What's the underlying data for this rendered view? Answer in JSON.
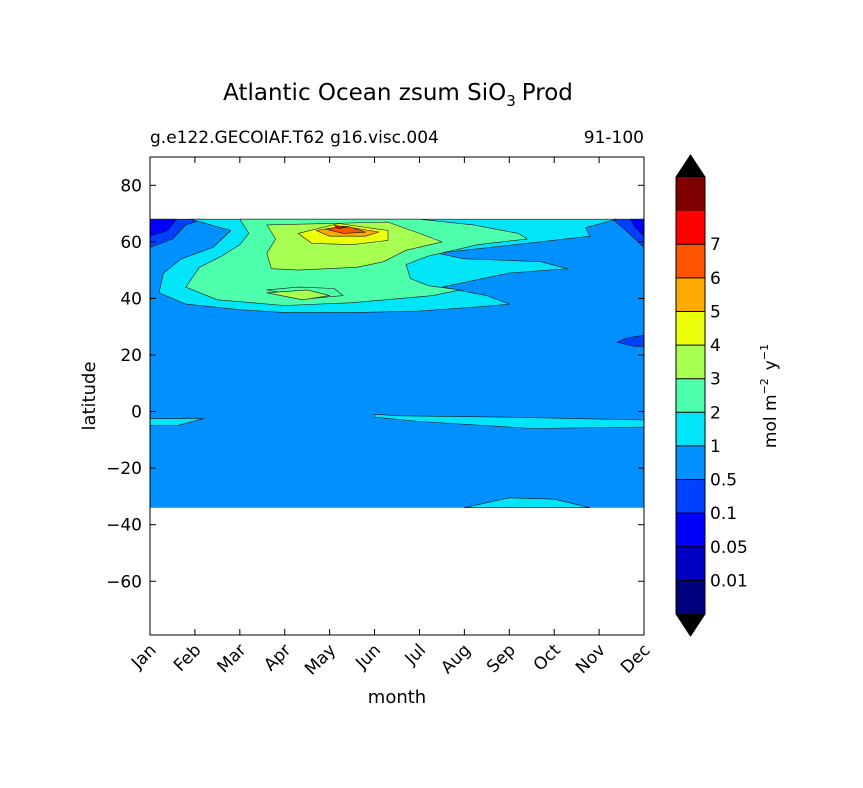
{
  "chart_data": {
    "type": "heatmap",
    "title": "Atlantic Ocean zsum SiO",
    "title_subscript": "3",
    "title_suffix": "Prod",
    "subtitle_left": "g.e122.GECOIAF.T62 g16.visc.004",
    "subtitle_right": "91-100",
    "xlabel": "month",
    "ylabel": "latitude",
    "x_tick_labels": [
      "Jan",
      "Feb",
      "Mar",
      "Apr",
      "May",
      "Jun",
      "Jul",
      "Aug",
      "Sep",
      "Oct",
      "Nov",
      "Dec"
    ],
    "y_ticks": [
      80,
      60,
      40,
      20,
      0,
      -20,
      -40,
      -60
    ],
    "y_tick_labels": [
      "80",
      "60",
      "40",
      "20",
      "0",
      "−20",
      "−40",
      "−60"
    ],
    "ylim": [
      -79,
      90
    ],
    "xlim": [
      0,
      11
    ],
    "data_extent_lat": [
      -34,
      68
    ],
    "colorbar": {
      "label": "mol m",
      "label_sup1": "−2",
      "label_mid": "y",
      "label_sup2": "−1",
      "extend": "both",
      "levels": [
        "0.01",
        "0.05",
        "0.1",
        "0.5",
        "1",
        "2",
        "3",
        "4",
        "5",
        "6",
        "7"
      ],
      "colors": [
        "#00007f",
        "#0000c4",
        "#0000ff",
        "#0040ff",
        "#0090ff",
        "#00e5f7",
        "#4dffaa",
        "#a6ff51",
        "#ecff0a",
        "#ffaa00",
        "#ff5500",
        "#ff0000",
        "#7f0000"
      ],
      "under_color": "#000000",
      "over_color": "#000000"
    },
    "regions": [
      {
        "level": 4,
        "note": "background 0.1-0.5",
        "poly": [
          [
            0,
            -34
          ],
          [
            0,
            68
          ],
          [
            11,
            68
          ],
          [
            11,
            -34
          ]
        ]
      },
      {
        "level": 3,
        "note": "Jan high-lat",
        "poly": [
          [
            0,
            68
          ],
          [
            0,
            58
          ],
          [
            0.5,
            61
          ],
          [
            0.8,
            66
          ],
          [
            1.2,
            68
          ]
        ]
      },
      {
        "level": 2,
        "note": "Jan high-lat core",
        "poly": [
          [
            0,
            68
          ],
          [
            0,
            62
          ],
          [
            0.4,
            64
          ],
          [
            0.6,
            68
          ]
        ]
      },
      {
        "level": 3,
        "note": "Dec high-lat",
        "poly": [
          [
            11,
            68
          ],
          [
            10.3,
            68
          ],
          [
            10.6,
            64
          ],
          [
            11,
            58
          ]
        ]
      },
      {
        "level": 2,
        "note": "Dec high-lat core",
        "poly": [
          [
            11,
            68
          ],
          [
            10.7,
            68
          ],
          [
            10.8,
            65
          ],
          [
            11,
            62
          ]
        ]
      },
      {
        "level": 3,
        "note": "Dec patch ~25N",
        "poly": [
          [
            11,
            27
          ],
          [
            10.6,
            26
          ],
          [
            10.4,
            24.5
          ],
          [
            10.8,
            23
          ],
          [
            11,
            23
          ]
        ]
      },
      {
        "level": 5,
        "note": "mid-lat band",
        "poly": [
          [
            0.9,
            68
          ],
          [
            1.8,
            64
          ],
          [
            1.4,
            58
          ],
          [
            0.7,
            54
          ],
          [
            0.3,
            49
          ],
          [
            0.2,
            42
          ],
          [
            0.8,
            38
          ],
          [
            2.0,
            36
          ],
          [
            3.0,
            35
          ],
          [
            4.5,
            35
          ],
          [
            6.0,
            35.5
          ],
          [
            7.3,
            37
          ],
          [
            8.0,
            38
          ],
          [
            7.5,
            41
          ],
          [
            6.5,
            44
          ],
          [
            8.0,
            49
          ],
          [
            9.3,
            50.5
          ],
          [
            8.7,
            53
          ],
          [
            7.0,
            54
          ],
          [
            6.4,
            56
          ],
          [
            8.4,
            59.5
          ],
          [
            9.8,
            62
          ],
          [
            9.7,
            65
          ],
          [
            10.4,
            68
          ]
        ]
      },
      {
        "level": 6,
        "note": "1-2 band",
        "poly": [
          [
            2.0,
            68
          ],
          [
            2.2,
            63
          ],
          [
            2.0,
            59
          ],
          [
            1.6,
            55
          ],
          [
            1.1,
            51
          ],
          [
            0.8,
            44
          ],
          [
            1.5,
            39.5
          ],
          [
            3.0,
            37.5
          ],
          [
            4.5,
            38.5
          ],
          [
            6.3,
            41
          ],
          [
            6.9,
            43
          ],
          [
            6.2,
            44.5
          ],
          [
            5.8,
            47
          ],
          [
            5.7,
            52
          ],
          [
            6.2,
            55
          ],
          [
            7.3,
            59
          ],
          [
            8.4,
            61
          ],
          [
            8.2,
            63
          ],
          [
            7.2,
            66
          ],
          [
            6.0,
            68
          ]
        ]
      },
      {
        "level": 6,
        "note": "1-2 band inner hole",
        "poly": [
          [
            2.6,
            43
          ],
          [
            3.6,
            40
          ],
          [
            4.3,
            41
          ],
          [
            4.1,
            43.5
          ],
          [
            3.3,
            44
          ]
        ]
      },
      {
        "level": 7,
        "note": "2-3 region",
        "poly": [
          [
            2.6,
            66
          ],
          [
            2.8,
            61
          ],
          [
            2.6,
            56
          ],
          [
            2.7,
            50.5
          ],
          [
            3.3,
            50
          ],
          [
            4.6,
            51
          ],
          [
            5.2,
            53
          ],
          [
            5.7,
            57
          ],
          [
            6.5,
            60
          ],
          [
            6.0,
            63
          ],
          [
            5.3,
            67
          ]
        ]
      },
      {
        "level": 7,
        "note": "2-3 small lobe ~42N",
        "poly": [
          [
            2.6,
            42
          ],
          [
            3.4,
            39.5
          ],
          [
            4.0,
            41
          ],
          [
            3.5,
            43
          ]
        ]
      },
      {
        "level": 8,
        "note": "3-4 region",
        "poly": [
          [
            3.3,
            63
          ],
          [
            3.6,
            59.5
          ],
          [
            4.5,
            59
          ],
          [
            5.3,
            60.5
          ],
          [
            5.3,
            64
          ],
          [
            4.2,
            66.5
          ]
        ]
      },
      {
        "level": 9,
        "note": "4-5 region",
        "poly": [
          [
            3.7,
            64
          ],
          [
            4.0,
            62
          ],
          [
            4.8,
            62
          ],
          [
            5.1,
            63.5
          ],
          [
            4.3,
            65.5
          ]
        ]
      },
      {
        "level": 10,
        "note": "5-6 region",
        "poly": [
          [
            3.9,
            64.5
          ],
          [
            4.3,
            63
          ],
          [
            4.8,
            63.4
          ],
          [
            4.4,
            65.5
          ]
        ]
      },
      {
        "level": 11,
        "note": "6-7 peak",
        "poly": [
          [
            4.1,
            65.8
          ],
          [
            4.2,
            64.7
          ],
          [
            4.4,
            65.2
          ]
        ]
      },
      {
        "level": 5,
        "note": "equatorial band east",
        "poly": [
          [
            5.0,
            -1
          ],
          [
            5.6,
            -1.5
          ],
          [
            8.0,
            -2
          ],
          [
            11,
            -3
          ],
          [
            11,
            -5.5
          ],
          [
            8.5,
            -6
          ],
          [
            6.0,
            -3.5
          ],
          [
            5.0,
            -2
          ]
        ]
      },
      {
        "level": 5,
        "note": "equatorial band west",
        "poly": [
          [
            0,
            -2.5
          ],
          [
            1.2,
            -2.5
          ],
          [
            0.6,
            -5
          ],
          [
            0,
            -5
          ]
        ]
      },
      {
        "level": 5,
        "note": "southern edge ~30S",
        "poly": [
          [
            7.0,
            -34
          ],
          [
            8.0,
            -30.5
          ],
          [
            9.0,
            -31
          ],
          [
            9.8,
            -34
          ]
        ]
      }
    ]
  }
}
